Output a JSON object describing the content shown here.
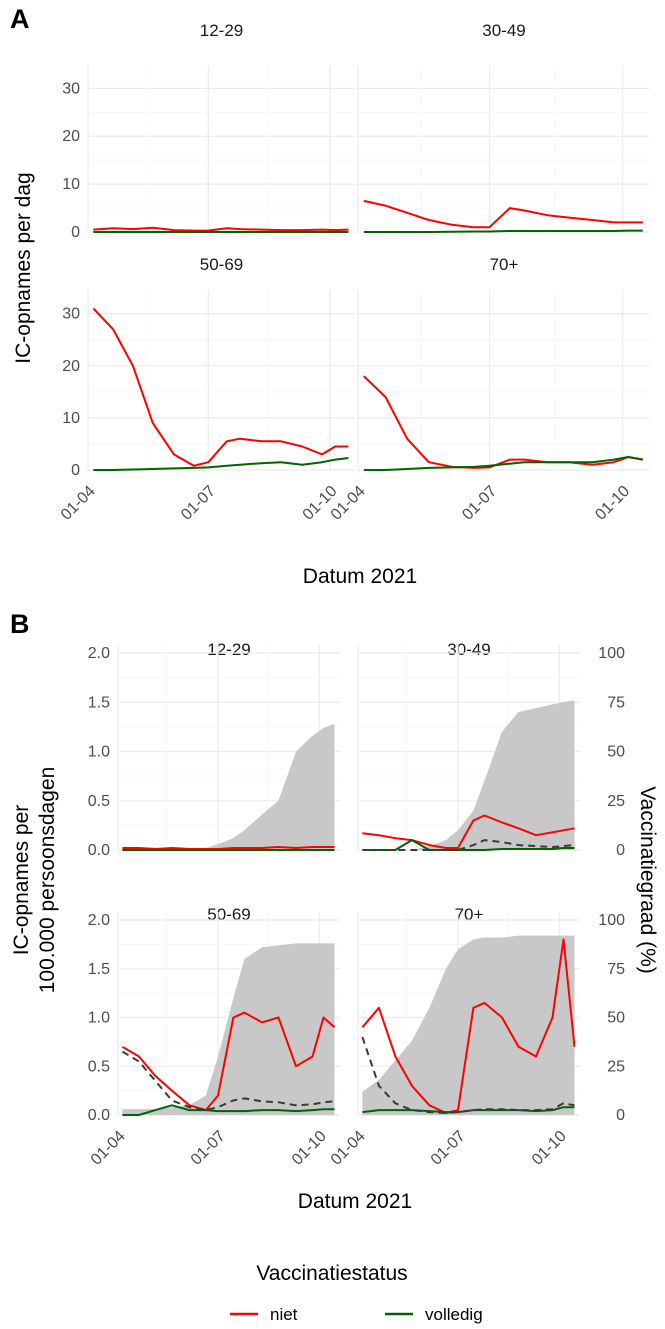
{
  "colors": {
    "niet": "#ff0000",
    "volledig": "#006400",
    "dashed": "#3a3a3a",
    "area": "#c8c8c8",
    "grid": "#ebebeb"
  },
  "chart_data": [
    {
      "panel_label": "A",
      "type": "line",
      "xlabel": "Datum 2021",
      "ylabel": "IC-opnames per dag",
      "x_range": [
        "2021-04-01",
        "2021-10-20"
      ],
      "ylim": [
        0,
        33
      ],
      "yticks": [
        "0",
        "10",
        "20",
        "30"
      ],
      "xticks": [
        "01-04",
        "01-07",
        "01-10"
      ],
      "x_dates": [
        "2021-04-05",
        "2021-04-20",
        "2021-05-05",
        "2021-05-20",
        "2021-06-05",
        "2021-06-20",
        "2021-07-01",
        "2021-07-15",
        "2021-07-25",
        "2021-08-10",
        "2021-08-25",
        "2021-09-10",
        "2021-09-25",
        "2021-10-05",
        "2021-10-15"
      ],
      "facets": [
        {
          "strip": "12-29",
          "series": [
            {
              "name": "niet",
              "values": [
                0.5,
                0.8,
                0.6,
                0.9,
                0.4,
                0.3,
                0.3,
                0.8,
                0.6,
                0.5,
                0.4,
                0.4,
                0.5,
                0.4,
                0.5
              ]
            },
            {
              "name": "volledig",
              "values": [
                0,
                0,
                0,
                0,
                0,
                0,
                0,
                0,
                0,
                0,
                0,
                0,
                0,
                0,
                0
              ]
            }
          ]
        },
        {
          "strip": "30-49",
          "series": [
            {
              "name": "niet",
              "values": [
                6.5,
                5.5,
                4.0,
                2.5,
                1.5,
                1.0,
                1.0,
                5.0,
                4.5,
                3.5,
                3.0,
                2.5,
                2.0,
                2.0,
                2.0
              ]
            },
            {
              "name": "volledig",
              "values": [
                0,
                0,
                0,
                0,
                0.05,
                0.1,
                0.1,
                0.2,
                0.2,
                0.2,
                0.2,
                0.2,
                0.2,
                0.3,
                0.3
              ]
            }
          ]
        },
        {
          "strip": "50-69",
          "series": [
            {
              "name": "niet",
              "values": [
                31,
                27,
                20,
                9,
                3,
                0.8,
                1.5,
                5.5,
                6.0,
                5.5,
                5.5,
                4.5,
                3.0,
                4.5,
                4.5
              ]
            },
            {
              "name": "volledig",
              "values": [
                0,
                0,
                0.1,
                0.2,
                0.3,
                0.4,
                0.5,
                0.8,
                1.0,
                1.3,
                1.5,
                1.0,
                1.5,
                2.0,
                2.3
              ]
            }
          ]
        },
        {
          "strip": "70+",
          "series": [
            {
              "name": "niet",
              "values": [
                18,
                14,
                6,
                1.5,
                0.6,
                0.4,
                0.5,
                2.0,
                2.0,
                1.5,
                1.5,
                1.0,
                1.5,
                2.5,
                2.0
              ]
            },
            {
              "name": "volledig",
              "values": [
                0,
                0,
                0.2,
                0.4,
                0.5,
                0.6,
                0.8,
                1.2,
                1.5,
                1.5,
                1.5,
                1.5,
                2.0,
                2.5,
                2.0
              ]
            }
          ]
        }
      ]
    },
    {
      "panel_label": "B",
      "type": "line",
      "xlabel": "Datum 2021",
      "ylabel": "IC-opnames per 100.000 persoonsdagen",
      "y2label": "Vaccinatiegraad (%)",
      "x_range": [
        "2021-04-01",
        "2021-10-20"
      ],
      "ylim": [
        0,
        2.0
      ],
      "y2lim": [
        0,
        100
      ],
      "yticks": [
        "0.0",
        "0.5",
        "1.0",
        "1.5",
        "2.0"
      ],
      "y2ticks": [
        "0",
        "25",
        "50",
        "75",
        "100"
      ],
      "xticks": [
        "01-04",
        "01-07",
        "01-10"
      ],
      "x_dates": [
        "2021-04-05",
        "2021-04-20",
        "2021-05-05",
        "2021-05-20",
        "2021-06-05",
        "2021-06-20",
        "2021-07-01",
        "2021-07-15",
        "2021-07-25",
        "2021-08-10",
        "2021-08-25",
        "2021-09-10",
        "2021-09-25",
        "2021-10-05",
        "2021-10-15"
      ],
      "facets": [
        {
          "strip": "12-29",
          "vaccination_pct": [
            0,
            0,
            0,
            0,
            0,
            1,
            3,
            6,
            10,
            18,
            25,
            50,
            58,
            62,
            64
          ],
          "series": [
            {
              "name": "niet",
              "values": [
                0.02,
                0.02,
                0.01,
                0.02,
                0.01,
                0.01,
                0.01,
                0.02,
                0.02,
                0.02,
                0.03,
                0.02,
                0.03,
                0.03,
                0.03
              ]
            },
            {
              "name": "volledig",
              "values": [
                0,
                0,
                0,
                0,
                0,
                0,
                0,
                0,
                0,
                0,
                0,
                0,
                0,
                0,
                0
              ]
            }
          ]
        },
        {
          "strip": "30-49",
          "vaccination_pct": [
            0,
            0,
            0,
            0,
            2,
            5,
            10,
            20,
            35,
            60,
            70,
            72,
            74,
            75,
            76
          ],
          "series": [
            {
              "name": "niet",
              "values": [
                0.17,
                0.15,
                0.12,
                0.1,
                0.05,
                0.02,
                0.02,
                0.3,
                0.35,
                0.28,
                0.22,
                0.15,
                0.18,
                0.2,
                0.22
              ]
            },
            {
              "name": "volledig",
              "values": [
                0,
                0,
                0,
                0.1,
                0,
                0,
                0,
                0,
                0,
                0.01,
                0.01,
                0.01,
                0.01,
                0.02,
                0.02
              ]
            },
            {
              "name": "",
              "dashed": true,
              "values": [
                0,
                0,
                0,
                0,
                0,
                0,
                0,
                0.05,
                0.1,
                0.08,
                0.05,
                0.04,
                0.03,
                0.04,
                0.05
              ]
            }
          ]
        },
        {
          "strip": "50-69",
          "vaccination_pct": [
            3,
            3,
            3,
            4,
            5,
            10,
            30,
            60,
            80,
            86,
            87,
            88,
            88,
            88,
            88
          ],
          "series": [
            {
              "name": "niet",
              "values": [
                0.7,
                0.6,
                0.4,
                0.25,
                0.1,
                0.05,
                0.2,
                1.0,
                1.05,
                0.95,
                1.0,
                0.5,
                0.6,
                1.0,
                0.9
              ]
            },
            {
              "name": "volledig",
              "values": [
                0,
                0,
                0.05,
                0.1,
                0.05,
                0.05,
                0.04,
                0.04,
                0.04,
                0.05,
                0.05,
                0.04,
                0.05,
                0.06,
                0.06
              ]
            },
            {
              "name": "",
              "dashed": true,
              "values": [
                0.65,
                0.55,
                0.35,
                0.15,
                0.08,
                0.05,
                0.08,
                0.15,
                0.17,
                0.14,
                0.13,
                0.1,
                0.11,
                0.13,
                0.14
              ]
            }
          ]
        },
        {
          "strip": "70+",
          "vaccination_pct": [
            12,
            18,
            28,
            38,
            55,
            75,
            85,
            90,
            91,
            91,
            92,
            92,
            92,
            92,
            92
          ],
          "series": [
            {
              "name": "niet",
              "values": [
                0.9,
                1.1,
                0.6,
                0.3,
                0.1,
                0.02,
                0.05,
                1.1,
                1.15,
                1.0,
                0.7,
                0.6,
                1.0,
                1.8,
                0.7
              ]
            },
            {
              "name": "volledig",
              "values": [
                0.03,
                0.05,
                0.05,
                0.05,
                0.04,
                0.03,
                0.03,
                0.05,
                0.05,
                0.05,
                0.05,
                0.04,
                0.05,
                0.08,
                0.08
              ]
            },
            {
              "name": "",
              "dashed": true,
              "values": [
                0.8,
                0.3,
                0.12,
                0.05,
                0.03,
                0.02,
                0.03,
                0.05,
                0.06,
                0.06,
                0.05,
                0.05,
                0.06,
                0.12,
                0.1
              ]
            }
          ]
        }
      ]
    }
  ],
  "legend": {
    "title": "Vaccinatiestatus",
    "items": [
      {
        "label": "niet",
        "color": "#ff0000"
      },
      {
        "label": "volledig",
        "color": "#006400"
      }
    ]
  }
}
